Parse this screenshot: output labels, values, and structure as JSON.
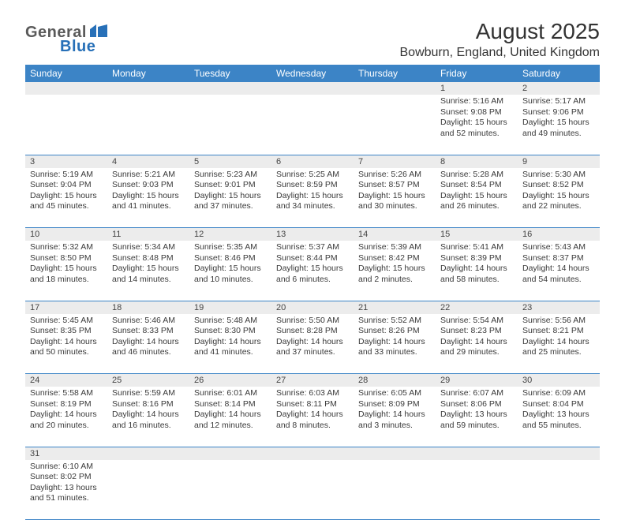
{
  "logo": {
    "text1": "General",
    "text2": "Blue"
  },
  "title": "August 2025",
  "location": "Bowburn, England, United Kingdom",
  "colors": {
    "header_bg": "#3c84c6",
    "header_fg": "#ffffff",
    "daynum_bg": "#ececec",
    "row_border": "#3c84c6",
    "logo_accent": "#2770b8",
    "logo_gray": "#5a5a5a",
    "text": "#3a3a3a"
  },
  "columns": [
    "Sunday",
    "Monday",
    "Tuesday",
    "Wednesday",
    "Thursday",
    "Friday",
    "Saturday"
  ],
  "weeks": [
    [
      null,
      null,
      null,
      null,
      null,
      {
        "n": "1",
        "sr": "5:16 AM",
        "ss": "9:08 PM",
        "dl": "15 hours and 52 minutes."
      },
      {
        "n": "2",
        "sr": "5:17 AM",
        "ss": "9:06 PM",
        "dl": "15 hours and 49 minutes."
      }
    ],
    [
      {
        "n": "3",
        "sr": "5:19 AM",
        "ss": "9:04 PM",
        "dl": "15 hours and 45 minutes."
      },
      {
        "n": "4",
        "sr": "5:21 AM",
        "ss": "9:03 PM",
        "dl": "15 hours and 41 minutes."
      },
      {
        "n": "5",
        "sr": "5:23 AM",
        "ss": "9:01 PM",
        "dl": "15 hours and 37 minutes."
      },
      {
        "n": "6",
        "sr": "5:25 AM",
        "ss": "8:59 PM",
        "dl": "15 hours and 34 minutes."
      },
      {
        "n": "7",
        "sr": "5:26 AM",
        "ss": "8:57 PM",
        "dl": "15 hours and 30 minutes."
      },
      {
        "n": "8",
        "sr": "5:28 AM",
        "ss": "8:54 PM",
        "dl": "15 hours and 26 minutes."
      },
      {
        "n": "9",
        "sr": "5:30 AM",
        "ss": "8:52 PM",
        "dl": "15 hours and 22 minutes."
      }
    ],
    [
      {
        "n": "10",
        "sr": "5:32 AM",
        "ss": "8:50 PM",
        "dl": "15 hours and 18 minutes."
      },
      {
        "n": "11",
        "sr": "5:34 AM",
        "ss": "8:48 PM",
        "dl": "15 hours and 14 minutes."
      },
      {
        "n": "12",
        "sr": "5:35 AM",
        "ss": "8:46 PM",
        "dl": "15 hours and 10 minutes."
      },
      {
        "n": "13",
        "sr": "5:37 AM",
        "ss": "8:44 PM",
        "dl": "15 hours and 6 minutes."
      },
      {
        "n": "14",
        "sr": "5:39 AM",
        "ss": "8:42 PM",
        "dl": "15 hours and 2 minutes."
      },
      {
        "n": "15",
        "sr": "5:41 AM",
        "ss": "8:39 PM",
        "dl": "14 hours and 58 minutes."
      },
      {
        "n": "16",
        "sr": "5:43 AM",
        "ss": "8:37 PM",
        "dl": "14 hours and 54 minutes."
      }
    ],
    [
      {
        "n": "17",
        "sr": "5:45 AM",
        "ss": "8:35 PM",
        "dl": "14 hours and 50 minutes."
      },
      {
        "n": "18",
        "sr": "5:46 AM",
        "ss": "8:33 PM",
        "dl": "14 hours and 46 minutes."
      },
      {
        "n": "19",
        "sr": "5:48 AM",
        "ss": "8:30 PM",
        "dl": "14 hours and 41 minutes."
      },
      {
        "n": "20",
        "sr": "5:50 AM",
        "ss": "8:28 PM",
        "dl": "14 hours and 37 minutes."
      },
      {
        "n": "21",
        "sr": "5:52 AM",
        "ss": "8:26 PM",
        "dl": "14 hours and 33 minutes."
      },
      {
        "n": "22",
        "sr": "5:54 AM",
        "ss": "8:23 PM",
        "dl": "14 hours and 29 minutes."
      },
      {
        "n": "23",
        "sr": "5:56 AM",
        "ss": "8:21 PM",
        "dl": "14 hours and 25 minutes."
      }
    ],
    [
      {
        "n": "24",
        "sr": "5:58 AM",
        "ss": "8:19 PM",
        "dl": "14 hours and 20 minutes."
      },
      {
        "n": "25",
        "sr": "5:59 AM",
        "ss": "8:16 PM",
        "dl": "14 hours and 16 minutes."
      },
      {
        "n": "26",
        "sr": "6:01 AM",
        "ss": "8:14 PM",
        "dl": "14 hours and 12 minutes."
      },
      {
        "n": "27",
        "sr": "6:03 AM",
        "ss": "8:11 PM",
        "dl": "14 hours and 8 minutes."
      },
      {
        "n": "28",
        "sr": "6:05 AM",
        "ss": "8:09 PM",
        "dl": "14 hours and 3 minutes."
      },
      {
        "n": "29",
        "sr": "6:07 AM",
        "ss": "8:06 PM",
        "dl": "13 hours and 59 minutes."
      },
      {
        "n": "30",
        "sr": "6:09 AM",
        "ss": "8:04 PM",
        "dl": "13 hours and 55 minutes."
      }
    ],
    [
      {
        "n": "31",
        "sr": "6:10 AM",
        "ss": "8:02 PM",
        "dl": "13 hours and 51 minutes."
      },
      null,
      null,
      null,
      null,
      null,
      null
    ]
  ],
  "labels": {
    "sunrise": "Sunrise:",
    "sunset": "Sunset:",
    "daylight": "Daylight:"
  }
}
